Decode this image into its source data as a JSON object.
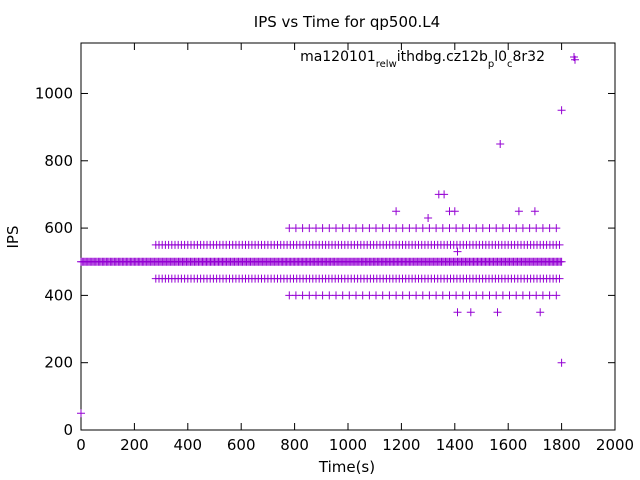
{
  "chart_data": {
    "type": "scatter",
    "title": "IPS vs Time for qp500.L4",
    "xlabel": "Time(s)",
    "ylabel": "IPS",
    "xlim": [
      0,
      2000
    ],
    "ylim": [
      0,
      1150
    ],
    "xticks": [
      0,
      200,
      400,
      600,
      800,
      1000,
      1200,
      1400,
      1600,
      1800,
      2000
    ],
    "yticks": [
      0,
      200,
      400,
      600,
      800,
      1000
    ],
    "grid": false,
    "legend": "top-right",
    "marker": "+",
    "color": "#9400d3",
    "series": [
      {
        "name": "ma120101_rel_withdbg.cz12b_p_l0_c8r32",
        "name_display": {
          "parts": [
            "ma120101",
            "rel",
            "w",
            "ithdbg.cz12b",
            "p",
            "l0",
            "c",
            "8r32"
          ],
          "subscript": [
            false,
            true,
            true,
            false,
            true,
            false,
            true,
            false
          ]
        },
        "bands": [
          {
            "y": 500,
            "x_start": 0,
            "x_end": 1800,
            "step": 5
          },
          {
            "y": 550,
            "x_start": 280,
            "x_end": 1800,
            "step": 12
          },
          {
            "y": 450,
            "x_start": 280,
            "x_end": 1800,
            "step": 12
          },
          {
            "y": 600,
            "x_start": 780,
            "x_end": 1800,
            "step": 25
          },
          {
            "y": 400,
            "x_start": 780,
            "x_end": 1800,
            "step": 25
          }
        ],
        "points": [
          {
            "x": 0,
            "y": 50
          },
          {
            "x": 1340,
            "y": 700
          },
          {
            "x": 1360,
            "y": 700
          },
          {
            "x": 1180,
            "y": 650
          },
          {
            "x": 1380,
            "y": 650
          },
          {
            "x": 1400,
            "y": 650
          },
          {
            "x": 1640,
            "y": 650
          },
          {
            "x": 1700,
            "y": 650
          },
          {
            "x": 1300,
            "y": 630
          },
          {
            "x": 1410,
            "y": 530
          },
          {
            "x": 1410,
            "y": 350
          },
          {
            "x": 1460,
            "y": 350
          },
          {
            "x": 1560,
            "y": 350
          },
          {
            "x": 1720,
            "y": 350
          },
          {
            "x": 1570,
            "y": 850
          },
          {
            "x": 1800,
            "y": 950
          },
          {
            "x": 1850,
            "y": 1100
          },
          {
            "x": 1800,
            "y": 200
          }
        ]
      }
    ]
  }
}
